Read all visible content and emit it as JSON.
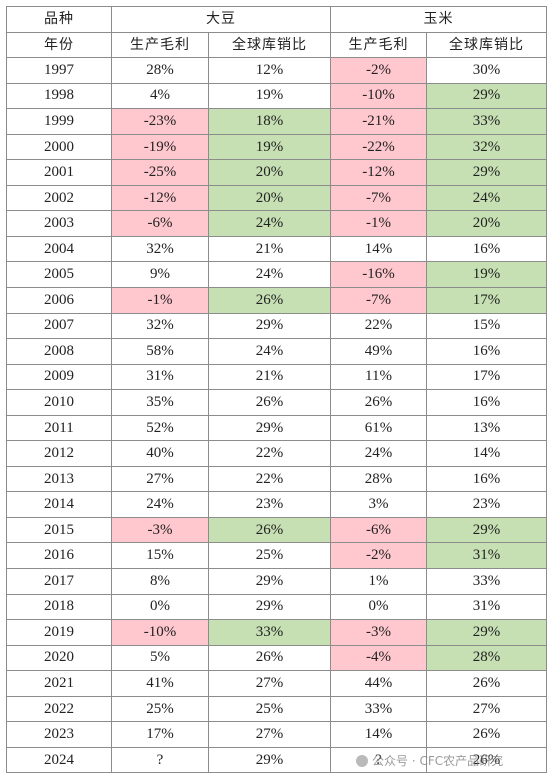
{
  "header": {
    "row1": {
      "label": "品种",
      "soy": "大豆",
      "corn": "玉米"
    },
    "row2": {
      "label": "年份",
      "soy_margin": "生产毛利",
      "soy_ratio": "全球库销比",
      "corn_margin": "生产毛利",
      "corn_ratio": "全球库销比"
    }
  },
  "highlight_colors": {
    "negative_margin": "#ffc7ce",
    "low_ratio": "#c6e0b4"
  },
  "rows": [
    {
      "year": "1997",
      "soy_margin": "28%",
      "soy_ratio": "12%",
      "corn_margin": "-2%",
      "corn_ratio": "30%",
      "soy_hl": false,
      "corn_hl": true,
      "corn_ratio_hl": false
    },
    {
      "year": "1998",
      "soy_margin": "4%",
      "soy_ratio": "19%",
      "corn_margin": "-10%",
      "corn_ratio": "29%",
      "soy_hl": false,
      "corn_hl": true,
      "corn_ratio_hl": true
    },
    {
      "year": "1999",
      "soy_margin": "-23%",
      "soy_ratio": "18%",
      "corn_margin": "-21%",
      "corn_ratio": "33%",
      "soy_hl": true,
      "corn_hl": true,
      "corn_ratio_hl": true
    },
    {
      "year": "2000",
      "soy_margin": "-19%",
      "soy_ratio": "19%",
      "corn_margin": "-22%",
      "corn_ratio": "32%",
      "soy_hl": true,
      "corn_hl": true,
      "corn_ratio_hl": true
    },
    {
      "year": "2001",
      "soy_margin": "-25%",
      "soy_ratio": "20%",
      "corn_margin": "-12%",
      "corn_ratio": "29%",
      "soy_hl": true,
      "corn_hl": true,
      "corn_ratio_hl": true
    },
    {
      "year": "2002",
      "soy_margin": "-12%",
      "soy_ratio": "20%",
      "corn_margin": "-7%",
      "corn_ratio": "24%",
      "soy_hl": true,
      "corn_hl": true,
      "corn_ratio_hl": true
    },
    {
      "year": "2003",
      "soy_margin": "-6%",
      "soy_ratio": "24%",
      "corn_margin": "-1%",
      "corn_ratio": "20%",
      "soy_hl": true,
      "corn_hl": true,
      "corn_ratio_hl": true
    },
    {
      "year": "2004",
      "soy_margin": "32%",
      "soy_ratio": "21%",
      "corn_margin": "14%",
      "corn_ratio": "16%",
      "soy_hl": false,
      "corn_hl": false,
      "corn_ratio_hl": false
    },
    {
      "year": "2005",
      "soy_margin": "9%",
      "soy_ratio": "24%",
      "corn_margin": "-16%",
      "corn_ratio": "19%",
      "soy_hl": false,
      "corn_hl": true,
      "corn_ratio_hl": true
    },
    {
      "year": "2006",
      "soy_margin": "-1%",
      "soy_ratio": "26%",
      "corn_margin": "-7%",
      "corn_ratio": "17%",
      "soy_hl": true,
      "corn_hl": true,
      "corn_ratio_hl": true
    },
    {
      "year": "2007",
      "soy_margin": "32%",
      "soy_ratio": "29%",
      "corn_margin": "22%",
      "corn_ratio": "15%",
      "soy_hl": false,
      "corn_hl": false,
      "corn_ratio_hl": false
    },
    {
      "year": "2008",
      "soy_margin": "58%",
      "soy_ratio": "24%",
      "corn_margin": "49%",
      "corn_ratio": "16%",
      "soy_hl": false,
      "corn_hl": false,
      "corn_ratio_hl": false
    },
    {
      "year": "2009",
      "soy_margin": "31%",
      "soy_ratio": "21%",
      "corn_margin": "11%",
      "corn_ratio": "17%",
      "soy_hl": false,
      "corn_hl": false,
      "corn_ratio_hl": false
    },
    {
      "year": "2010",
      "soy_margin": "35%",
      "soy_ratio": "26%",
      "corn_margin": "26%",
      "corn_ratio": "16%",
      "soy_hl": false,
      "corn_hl": false,
      "corn_ratio_hl": false
    },
    {
      "year": "2011",
      "soy_margin": "52%",
      "soy_ratio": "29%",
      "corn_margin": "61%",
      "corn_ratio": "13%",
      "soy_hl": false,
      "corn_hl": false,
      "corn_ratio_hl": false
    },
    {
      "year": "2012",
      "soy_margin": "40%",
      "soy_ratio": "22%",
      "corn_margin": "24%",
      "corn_ratio": "14%",
      "soy_hl": false,
      "corn_hl": false,
      "corn_ratio_hl": false
    },
    {
      "year": "2013",
      "soy_margin": "27%",
      "soy_ratio": "22%",
      "corn_margin": "28%",
      "corn_ratio": "16%",
      "soy_hl": false,
      "corn_hl": false,
      "corn_ratio_hl": false
    },
    {
      "year": "2014",
      "soy_margin": "24%",
      "soy_ratio": "23%",
      "corn_margin": "3%",
      "corn_ratio": "23%",
      "soy_hl": false,
      "corn_hl": false,
      "corn_ratio_hl": false
    },
    {
      "year": "2015",
      "soy_margin": "-3%",
      "soy_ratio": "26%",
      "corn_margin": "-6%",
      "corn_ratio": "29%",
      "soy_hl": true,
      "corn_hl": true,
      "corn_ratio_hl": true
    },
    {
      "year": "2016",
      "soy_margin": "15%",
      "soy_ratio": "25%",
      "corn_margin": "-2%",
      "corn_ratio": "31%",
      "soy_hl": false,
      "corn_hl": true,
      "corn_ratio_hl": true
    },
    {
      "year": "2017",
      "soy_margin": "8%",
      "soy_ratio": "29%",
      "corn_margin": "1%",
      "corn_ratio": "33%",
      "soy_hl": false,
      "corn_hl": false,
      "corn_ratio_hl": false
    },
    {
      "year": "2018",
      "soy_margin": "0%",
      "soy_ratio": "29%",
      "corn_margin": "0%",
      "corn_ratio": "31%",
      "soy_hl": false,
      "corn_hl": false,
      "corn_ratio_hl": false
    },
    {
      "year": "2019",
      "soy_margin": "-10%",
      "soy_ratio": "33%",
      "corn_margin": "-3%",
      "corn_ratio": "29%",
      "soy_hl": true,
      "corn_hl": true,
      "corn_ratio_hl": true
    },
    {
      "year": "2020",
      "soy_margin": "5%",
      "soy_ratio": "26%",
      "corn_margin": "-4%",
      "corn_ratio": "28%",
      "soy_hl": false,
      "corn_hl": true,
      "corn_ratio_hl": true
    },
    {
      "year": "2021",
      "soy_margin": "41%",
      "soy_ratio": "27%",
      "corn_margin": "44%",
      "corn_ratio": "26%",
      "soy_hl": false,
      "corn_hl": false,
      "corn_ratio_hl": false
    },
    {
      "year": "2022",
      "soy_margin": "25%",
      "soy_ratio": "25%",
      "corn_margin": "33%",
      "corn_ratio": "27%",
      "soy_hl": false,
      "corn_hl": false,
      "corn_ratio_hl": false
    },
    {
      "year": "2023",
      "soy_margin": "17%",
      "soy_ratio": "27%",
      "corn_margin": "14%",
      "corn_ratio": "26%",
      "soy_hl": false,
      "corn_hl": false,
      "corn_ratio_hl": false
    },
    {
      "year": "2024",
      "soy_margin": "?",
      "soy_ratio": "29%",
      "corn_margin": "?",
      "corn_ratio": "26%",
      "soy_hl": false,
      "corn_hl": false,
      "corn_ratio_hl": false
    }
  ],
  "watermark": "公众号 · CFC农产品研究"
}
